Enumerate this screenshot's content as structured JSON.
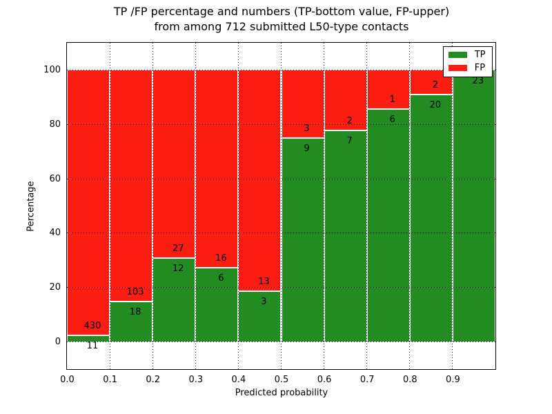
{
  "figure": {
    "title_line1": "TP /FP percentage and numbers (TP-bottom value, FP-upper)",
    "title_line2": "from among 712 submitted L50-type contacts",
    "xlabel": "Predicted probability",
    "ylabel": "Percentage"
  },
  "chart_data": {
    "type": "bar",
    "stacked": true,
    "title": "TP /FP percentage and numbers (TP-bottom value, FP-upper) from among 712 submitted L50-type contacts",
    "xlabel": "Predicted probability",
    "ylabel": "Percentage",
    "total_contacts": 712,
    "categories": [
      "0.0-0.1",
      "0.1-0.2",
      "0.2-0.3",
      "0.3-0.4",
      "0.4-0.5",
      "0.5-0.6",
      "0.6-0.7",
      "0.7-0.8",
      "0.8-0.9",
      "0.9-1.0"
    ],
    "series": [
      {
        "name": "TP",
        "color": "#228b22",
        "values": [
          11,
          18,
          12,
          6,
          3,
          9,
          7,
          6,
          20,
          23
        ]
      },
      {
        "name": "FP",
        "color": "#fc1d13",
        "values": [
          430,
          103,
          27,
          16,
          13,
          3,
          2,
          1,
          2,
          0
        ]
      }
    ],
    "tp_percentages": [
      2.49,
      14.88,
      30.77,
      27.27,
      18.75,
      75.0,
      77.78,
      85.71,
      90.91,
      100.0
    ],
    "x_tick_labels": [
      "0.0",
      "0.1",
      "0.2",
      "0.3",
      "0.4",
      "0.5",
      "0.6",
      "0.7",
      "0.8",
      "0.9"
    ],
    "y_tick_values": [
      0,
      20,
      40,
      60,
      80,
      100
    ],
    "xlim": [
      0.0,
      1.0
    ],
    "ylim": [
      -10,
      110
    ],
    "grid": true,
    "grid_style": "dotted",
    "bar_edge_color": "#ffffff",
    "legend": {
      "position": "upper-right",
      "entries": [
        {
          "label": "TP",
          "color": "#228b22"
        },
        {
          "label": "FP",
          "color": "#fc1d13"
        }
      ]
    }
  }
}
